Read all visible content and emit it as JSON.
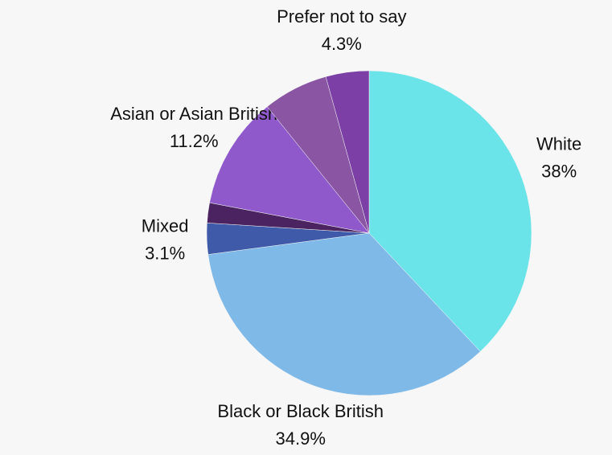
{
  "chart_data": {
    "type": "pie",
    "categories": [
      "White",
      "Black or Black British",
      "Mixed",
      null,
      "Asian or Asian British",
      null,
      "Prefer not to say"
    ],
    "values": [
      38,
      34.9,
      3.1,
      2,
      11.2,
      6.5,
      4.3
    ],
    "value_labels": [
      "38%",
      "34.9%",
      "3.1%",
      null,
      "11.2%",
      null,
      "4.3%"
    ],
    "colors": [
      "#6ae4e8",
      "#7fb9e8",
      "#3e5aa8",
      "#4a2360",
      "#8f59cc",
      "#8a55a3",
      "#7b3fa6"
    ]
  }
}
